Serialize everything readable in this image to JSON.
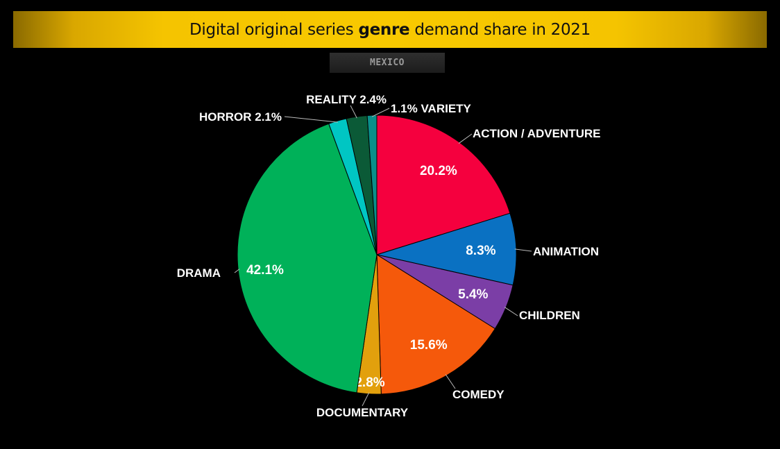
{
  "header": {
    "title_pre": "Digital original series ",
    "title_bold": "genre",
    "title_post": " demand share in 2021",
    "subtitle": "MEXICO"
  },
  "chart_data": {
    "type": "pie",
    "title": "Digital original series genre demand share in 2021",
    "subtitle": "MEXICO",
    "slices": [
      {
        "label": "ACTION / ADVENTURE",
        "value": 20.2,
        "display": "20.2%",
        "color": "#f5003e"
      },
      {
        "label": "ANIMATION",
        "value": 8.3,
        "display": "8.3%",
        "color": "#0a71c2"
      },
      {
        "label": "CHILDREN",
        "value": 5.4,
        "display": "5.4%",
        "color": "#7b3ea6"
      },
      {
        "label": "COMEDY",
        "value": 15.6,
        "display": "15.6%",
        "color": "#f5590b"
      },
      {
        "label": "DOCUMENTARY",
        "value": 2.8,
        "display": "2.8%",
        "color": "#e2a00d"
      },
      {
        "label": "DRAMA",
        "value": 42.1,
        "display": "42.1%",
        "color": "#00b159"
      },
      {
        "label": "HORROR",
        "value": 2.1,
        "display": "2.1%",
        "color": "#00c6c3"
      },
      {
        "label": "REALITY",
        "value": 2.4,
        "display": "2.4%",
        "color": "#0b5a37"
      },
      {
        "label": "VARIETY",
        "value": 1.1,
        "display": "1.1%",
        "color": "#0a8f8a"
      }
    ]
  }
}
